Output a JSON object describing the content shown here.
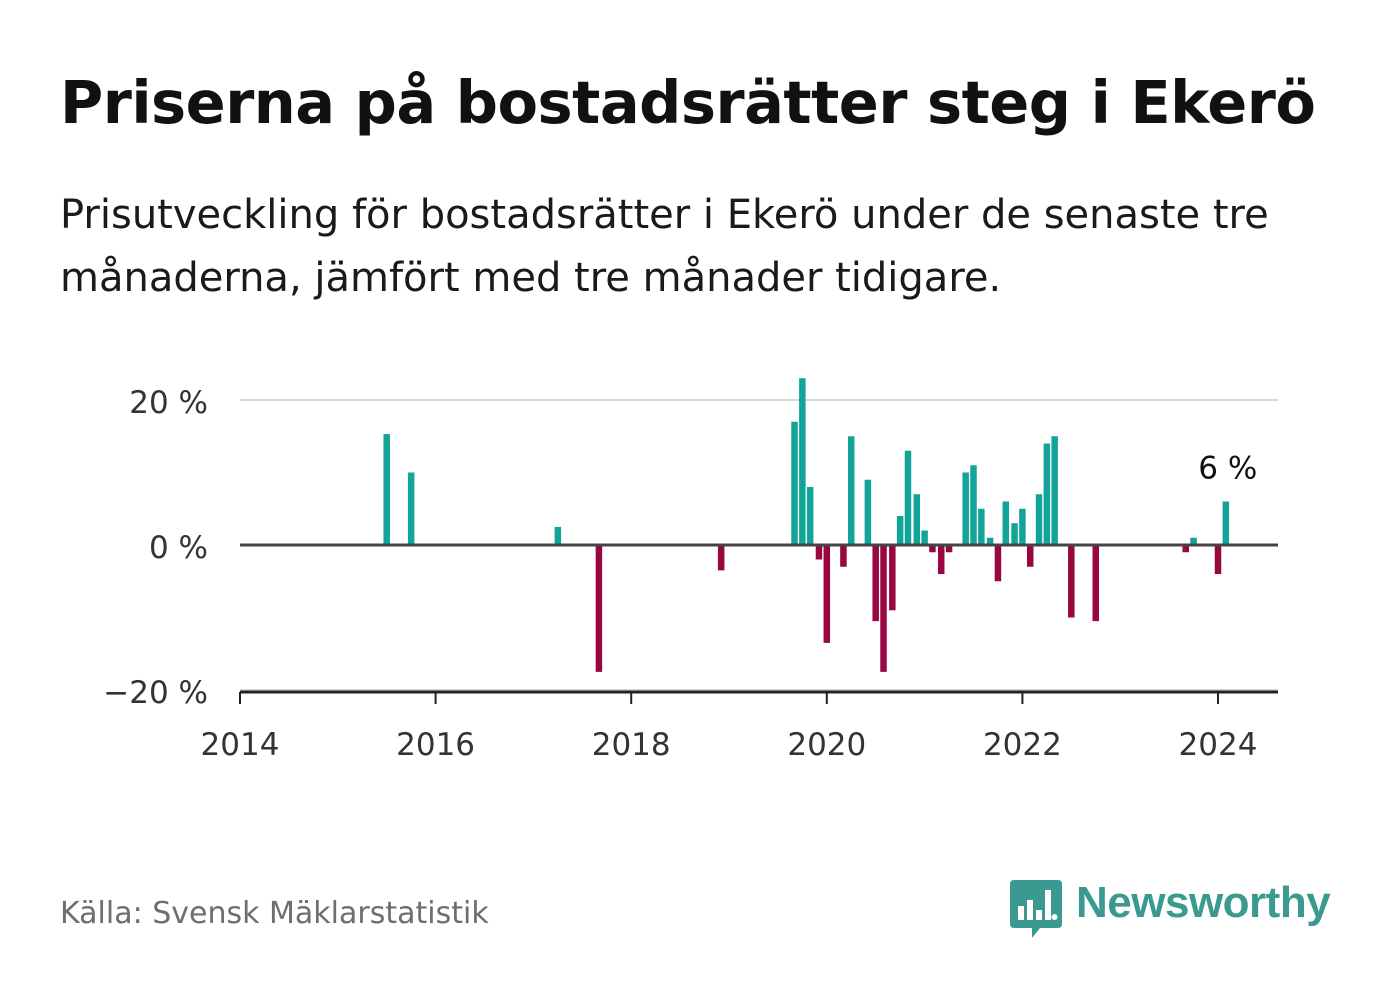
{
  "title": "Priserna på bostadsrätter steg i Ekerö",
  "subtitle": "Prisutveckling för bostadsrätter i Ekerö under de senaste tre månaderna, jämfört med tre månader tidigare.",
  "source": "Källa: Svensk Mäklarstatistik",
  "brand": {
    "name": "Newsworthy",
    "icon": "newsworthy-logo-icon",
    "color": "#3a9a8f"
  },
  "colors": {
    "positive": "#12a399",
    "negative": "#98073f",
    "grid": "#d9d9d9",
    "axis": "#444444"
  },
  "chart_data": {
    "type": "bar",
    "title": "Priserna på bostadsrätter steg i Ekerö",
    "xlabel": "",
    "ylabel": "",
    "xlim": [
      2014,
      2024.6
    ],
    "ylim": [
      -20,
      20
    ],
    "x_ticks": [
      2014,
      2016,
      2018,
      2020,
      2022,
      2024
    ],
    "x_tick_labels": [
      "2014",
      "2016",
      "2018",
      "2020",
      "2022",
      "2024"
    ],
    "y_ticks": [
      -20,
      0,
      20
    ],
    "y_tick_labels": [
      "−20 %",
      "0 %",
      "20 %"
    ],
    "unit": "%",
    "annotation": {
      "label": "6 %",
      "x": 2024.08,
      "value": 6
    },
    "series": [
      {
        "name": "Prisutveckling",
        "points": [
          {
            "x": 2015.5,
            "value": 15.3
          },
          {
            "x": 2015.75,
            "value": 10
          },
          {
            "x": 2017.25,
            "value": 2.5
          },
          {
            "x": 2017.67,
            "value": -17.5
          },
          {
            "x": 2018.92,
            "value": -3.5
          },
          {
            "x": 2019.67,
            "value": 17
          },
          {
            "x": 2019.75,
            "value": 23
          },
          {
            "x": 2019.83,
            "value": 8
          },
          {
            "x": 2019.92,
            "value": -2
          },
          {
            "x": 2020.0,
            "value": -13.5
          },
          {
            "x": 2020.17,
            "value": -3
          },
          {
            "x": 2020.25,
            "value": 15
          },
          {
            "x": 2020.42,
            "value": 9
          },
          {
            "x": 2020.5,
            "value": -10.5
          },
          {
            "x": 2020.58,
            "value": -17.5
          },
          {
            "x": 2020.67,
            "value": -9
          },
          {
            "x": 2020.75,
            "value": 4
          },
          {
            "x": 2020.83,
            "value": 13
          },
          {
            "x": 2020.92,
            "value": 7
          },
          {
            "x": 2021.0,
            "value": 2
          },
          {
            "x": 2021.08,
            "value": -1
          },
          {
            "x": 2021.17,
            "value": -4
          },
          {
            "x": 2021.25,
            "value": -1
          },
          {
            "x": 2021.42,
            "value": 10
          },
          {
            "x": 2021.5,
            "value": 11
          },
          {
            "x": 2021.58,
            "value": 5
          },
          {
            "x": 2021.67,
            "value": 1
          },
          {
            "x": 2021.75,
            "value": -5
          },
          {
            "x": 2021.83,
            "value": 6
          },
          {
            "x": 2021.92,
            "value": 3
          },
          {
            "x": 2022.0,
            "value": 5
          },
          {
            "x": 2022.08,
            "value": -3
          },
          {
            "x": 2022.17,
            "value": 7
          },
          {
            "x": 2022.25,
            "value": 14
          },
          {
            "x": 2022.33,
            "value": 15
          },
          {
            "x": 2022.5,
            "value": -10
          },
          {
            "x": 2022.75,
            "value": -10.5
          },
          {
            "x": 2023.67,
            "value": -1
          },
          {
            "x": 2023.75,
            "value": 1
          },
          {
            "x": 2024.0,
            "value": -4
          },
          {
            "x": 2024.08,
            "value": 6
          }
        ]
      }
    ]
  }
}
